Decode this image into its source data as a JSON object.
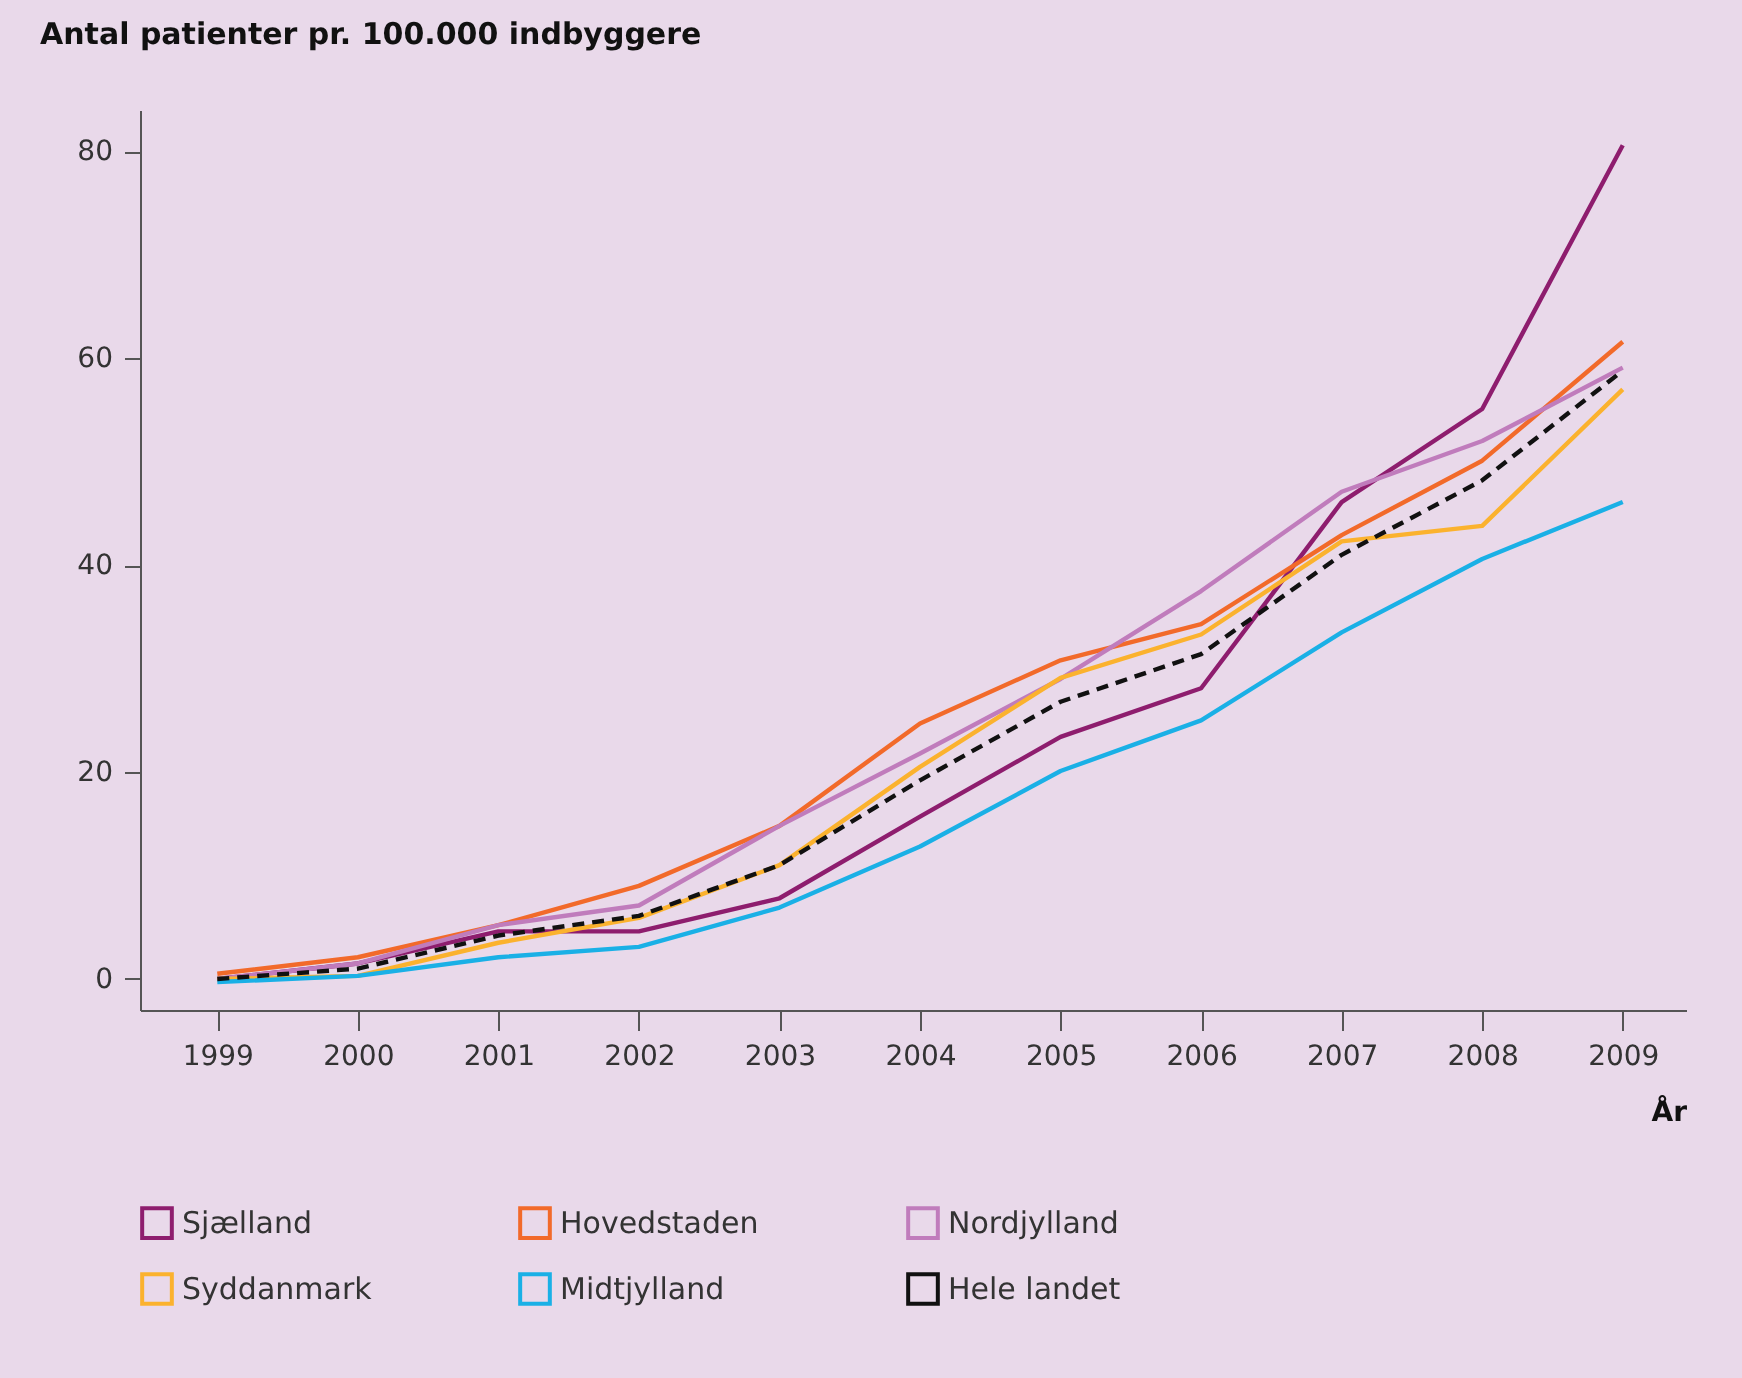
{
  "chart_data": {
    "type": "line",
    "title": "Antal patienter pr. 100.000 indbyggere",
    "xlabel": "År",
    "categories": [
      "1999",
      "2000",
      "2001",
      "2002",
      "2003",
      "2004",
      "2005",
      "2006",
      "2007",
      "2008",
      "2009"
    ],
    "ylim": [
      -3,
      84
    ],
    "yticks": [
      0,
      20,
      40,
      60,
      80
    ],
    "grid": false,
    "legend": "bottom",
    "marker": "none",
    "series": [
      {
        "name": "Sjælland",
        "color": "#8e1d6e",
        "values": [
          0,
          1.5,
          4.6,
          4.6,
          7.8,
          15.7,
          23.4,
          28.1,
          46.1,
          55.1,
          80.6
        ]
      },
      {
        "name": "Hovedstaden",
        "color": "#f26a2a",
        "values": [
          0.5,
          2.1,
          5.2,
          9,
          14.8,
          24.7,
          30.8,
          34.3,
          42.9,
          50.1,
          61.6
        ]
      },
      {
        "name": "Nordjylland",
        "color": "#c07cbc",
        "values": [
          0,
          1.5,
          5.2,
          7.1,
          14.8,
          21.8,
          29,
          37.5,
          47.1,
          52,
          59.1
        ]
      },
      {
        "name": "Syddanmark",
        "color": "#fbb22e",
        "values": [
          0,
          0.3,
          3.5,
          5.9,
          11,
          20.5,
          29.1,
          33.3,
          42.3,
          43.8,
          57
        ]
      },
      {
        "name": "Midtjylland",
        "color": "#1ab0e6",
        "values": [
          -0.3,
          0.3,
          2.1,
          3.1,
          6.9,
          12.8,
          20.1,
          25,
          33.5,
          40.6,
          46.1
        ]
      },
      {
        "name": "Hele landet",
        "color": "#111111",
        "line_style": "dashed",
        "values": [
          0,
          1,
          4.2,
          6.1,
          11,
          19.2,
          26.8,
          31.4,
          41,
          48.2,
          58.8
        ]
      }
    ]
  }
}
